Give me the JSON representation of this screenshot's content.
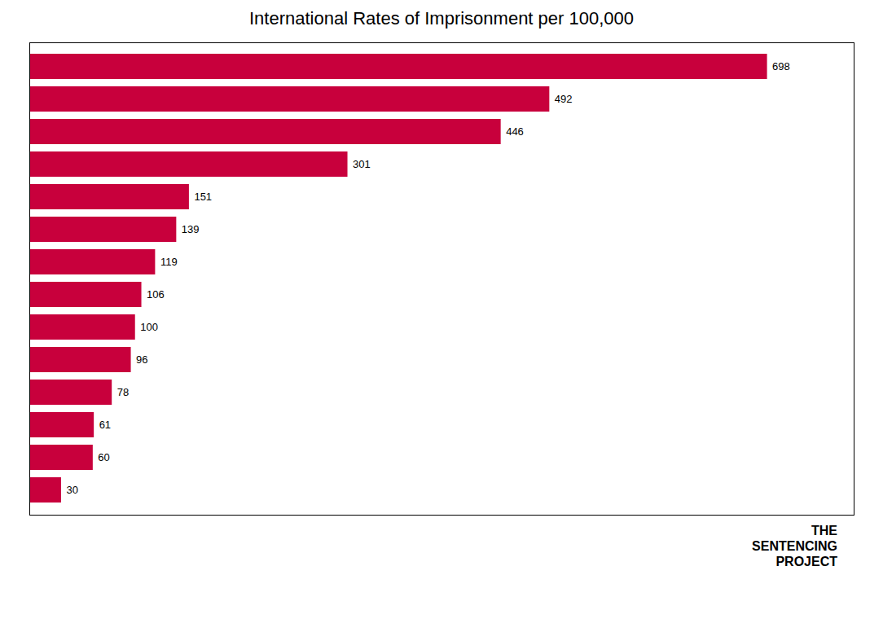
{
  "chart_data": {
    "type": "bar",
    "title": "International Rates of Imprisonment per 100,000",
    "orientation": "horizontal",
    "categories": [
      null,
      null,
      null,
      null,
      null,
      null,
      null,
      null,
      null,
      null,
      null,
      null,
      null,
      null
    ],
    "values": [
      698,
      492,
      446,
      301,
      151,
      139,
      119,
      106,
      100,
      96,
      78,
      61,
      60,
      30
    ],
    "color": "#C8003C",
    "xlim": [
      0,
      780
    ],
    "xticks": [],
    "grid": false,
    "data_labels": true,
    "tick_labels": false,
    "annotations": [
      "THE",
      "SENTENCING",
      "PROJECT"
    ]
  }
}
